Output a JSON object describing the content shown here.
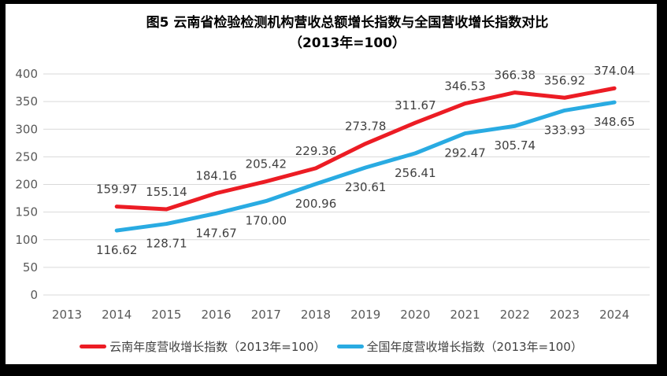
{
  "chart_data": {
    "type": "line",
    "title": "图5  云南省检验检测机构营收总额增长指数与全国营收增长指数对比",
    "subtitle": "（2013年=100）",
    "xlabel": "",
    "ylabel": "",
    "categories": [
      "2013",
      "2014",
      "2015",
      "2016",
      "2017",
      "2018",
      "2019",
      "2020",
      "2021",
      "2022",
      "2023",
      "2024"
    ],
    "series": [
      {
        "name": "云南年度营收增长指数（2013年=100）",
        "color": "#EC1C24",
        "label_position": "above",
        "values": [
          null,
          159.97,
          155.14,
          184.16,
          205.42,
          229.36,
          273.78,
          311.67,
          346.53,
          366.38,
          356.92,
          374.04
        ],
        "labels": [
          null,
          "159.97",
          "155.14",
          "184.16",
          "205.42",
          "229.36",
          "273.78",
          "311.67",
          "346.53",
          "366.38",
          "356.92",
          "374.04"
        ]
      },
      {
        "name": "全国年度营收增长指数（2013年=100）",
        "color": "#29ABE2",
        "label_position": "below",
        "values": [
          null,
          116.62,
          128.71,
          147.67,
          170.0,
          200.96,
          230.61,
          256.41,
          292.47,
          305.74,
          333.93,
          348.65
        ],
        "labels": [
          null,
          "116.62",
          "128.71",
          "147.67",
          "170.00",
          "200.96",
          "230.61",
          "256.41",
          "292.47",
          "305.74",
          "333.93",
          "348.65"
        ]
      }
    ],
    "y_axis": {
      "min": 0,
      "max": 400,
      "step": 50,
      "ticks": [
        "0",
        "50",
        "100",
        "150",
        "200",
        "250",
        "300",
        "350",
        "400"
      ]
    },
    "grid": true,
    "legend_position": "bottom",
    "colors": {
      "gridline": "#D9D9D9",
      "axis_text": "#595959",
      "data_label": "#404040",
      "title": "#000000",
      "background": "#FFFFFF",
      "frame": "#000000"
    }
  }
}
